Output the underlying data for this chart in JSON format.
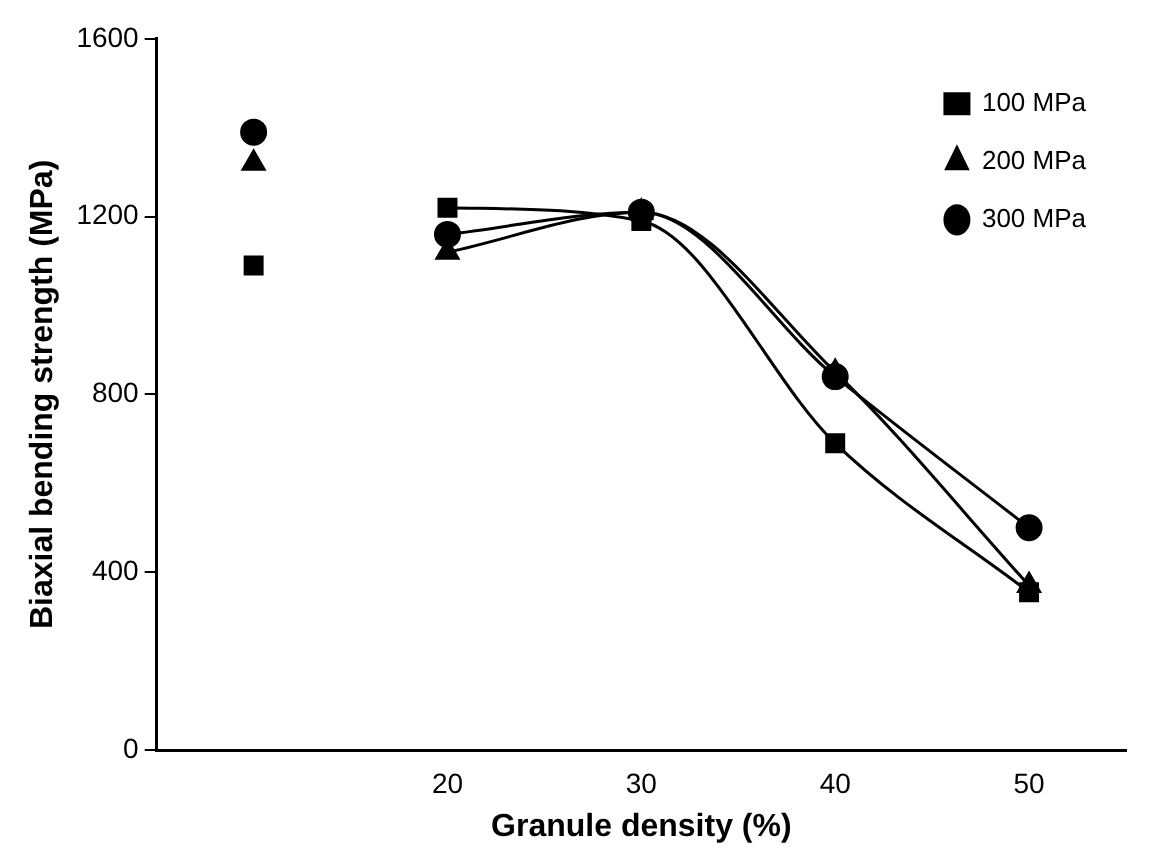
{
  "chart_data": {
    "type": "line",
    "xlabel": "Granule density (%)",
    "ylabel": "Biaxial bending strength (MPa)",
    "categories": [
      null,
      "20",
      "30",
      "40",
      "50"
    ],
    "ylim": [
      0,
      1600
    ],
    "yticks": [
      0,
      400,
      800,
      1200,
      1600
    ],
    "grid": false,
    "legend": "top right",
    "series": [
      {
        "name": "100 MPa",
        "color": "#000000",
        "marker": "square",
        "values": [
          null,
          1220,
          1190,
          690,
          355
        ]
      },
      {
        "name": "200 MPa",
        "color": "#000000",
        "marker": "triangle",
        "values": [
          null,
          1120,
          1210,
          850,
          370
        ]
      },
      {
        "name": "300 MPa",
        "color": "#000000",
        "marker": "circle",
        "values": [
          null,
          1160,
          1210,
          840,
          500
        ]
      },
      {
        "type": "scatter",
        "color": "#000000",
        "marker": "square",
        "values": [
          1090,
          null,
          null,
          null,
          null
        ]
      },
      {
        "type": "scatter",
        "color": "#000000",
        "marker": "triangle",
        "values": [
          1320,
          null,
          null,
          null,
          null
        ]
      },
      {
        "type": "scatter",
        "color": "#000000",
        "marker": "circle",
        "values": [
          1390,
          null,
          null,
          null,
          null
        ]
      }
    ]
  }
}
